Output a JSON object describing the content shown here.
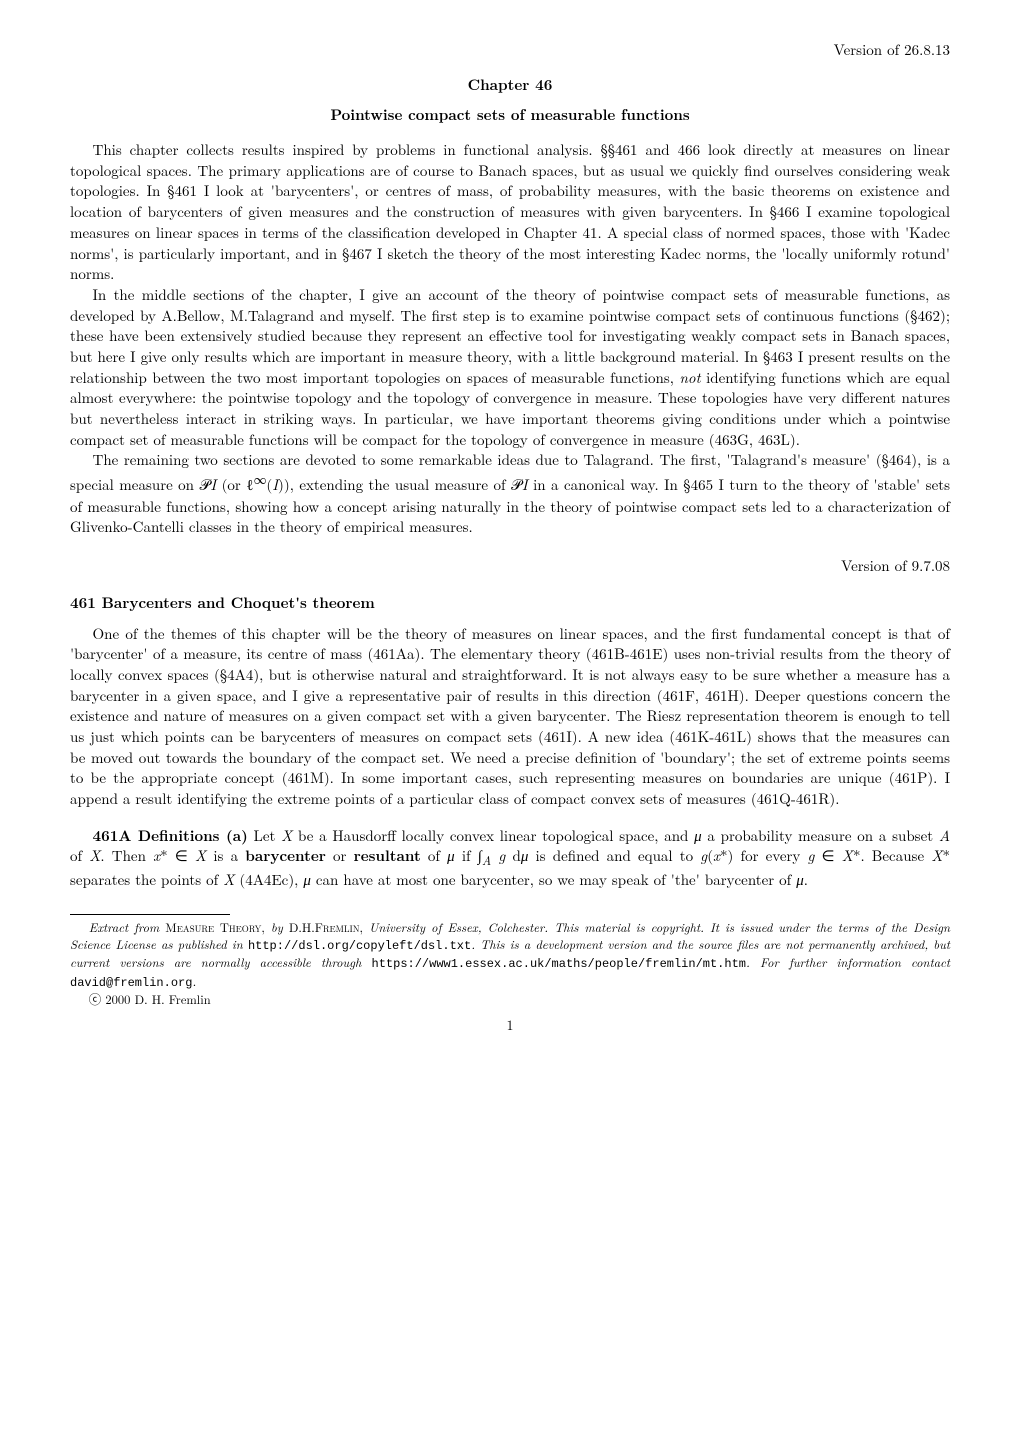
{
  "version_top": "Version of 26.8.13",
  "chapter_label": "Chapter 46",
  "chapter_title": "Pointwise compact sets of measurable functions",
  "intro_p1": "This chapter collects results inspired by problems in functional analysis. §§461 and 466 look directly at measures on linear topological spaces. The primary applications are of course to Banach spaces, but as usual we quickly find ourselves considering weak topologies. In §461 I look at 'barycenters', or centres of mass, of probability measures, with the basic theorems on existence and location of barycenters of given measures and the construction of measures with given barycenters. In §466 I examine topological measures on linear spaces in terms of the classification developed in Chapter 41. A special class of normed spaces, those with 'Kadec norms', is particularly important, and in §467 I sketch the theory of the most interesting Kadec norms, the 'locally uniformly rotund' norms.",
  "intro_p2": "In the middle sections of the chapter, I give an account of the theory of pointwise compact sets of measurable functions, as developed by A.Bellow, M.Talagrand and myself. The first step is to examine pointwise compact sets of continuous functions (§462); these have been extensively studied because they represent an effective tool for investigating weakly compact sets in Banach spaces, but here I give only results which are important in measure theory, with a little background material. In §463 I present results on the relationship between the two most important topologies on spaces of measurable functions, not identifying functions which are equal almost everywhere: the pointwise topology and the topology of convergence in measure. These topologies have very different natures but nevertheless interact in striking ways. In particular, we have important theorems giving conditions under which a pointwise compact set of measurable functions will be compact for the topology of convergence in measure (463G, 463L).",
  "intro_p3": "The remaining two sections are devoted to some remarkable ideas due to Talagrand. The first, 'Talagrand's measure' (§464), is a special measure on 𝒫I (or ℓ∞(I)), extending the usual measure of 𝒫I in a canonical way. In §465 I turn to the theory of 'stable' sets of measurable functions, showing how a concept arising naturally in the theory of pointwise compact sets led to a characterization of Glivenko-Cantelli classes in the theory of empirical measures.",
  "version_mid": "Version of 9.7.08",
  "section_heading": "461 Barycenters and Choquet's theorem",
  "section_p1": "One of the themes of this chapter will be the theory of measures on linear spaces, and the first fundamental concept is that of 'barycenter' of a measure, its centre of mass (461Aa). The elementary theory (461B-461E) uses non-trivial results from the theory of locally convex spaces (§4A4), but is otherwise natural and straightforward. It is not always easy to be sure whether a measure has a barycenter in a given space, and I give a representative pair of results in this direction (461F, 461H). Deeper questions concern the existence and nature of measures on a given compact set with a given barycenter. The Riesz representation theorem is enough to tell us just which points can be barycenters of measures on compact sets (461I). A new idea (461K-461L) shows that the measures can be moved out towards the boundary of the compact set. We need a precise definition of 'boundary'; the set of extreme points seems to be the appropriate concept (461M). In some important cases, such representing measures on boundaries are unique (461P). I append a result identifying the extreme points of a particular class of compact convex sets of measures (461Q-461R).",
  "def_p": "461A Definitions (a) Let X be a Hausdorff locally convex linear topological space, and μ a probability measure on a subset A of X. Then x* ∈ X is a barycenter or resultant of μ if ∫A g dμ is defined and equal to g(x*) for every g ∈ X*. Because X* separates the points of X (4A4Ec), μ can have at most one barycenter, so we may speak of 'the' barycenter of μ.",
  "footnote1_pre": "Extract from ",
  "footnote1_sc1": "Measure Theory,",
  "footnote1_by": " by ",
  "footnote1_sc2": "D.H.Fremlin,",
  "footnote1_mid": " University of Essex, Colchester. This material is copyright. It is issued under the terms of the Design Science License as published in ",
  "footnote1_url1": "http://dsl.org/copyleft/dsl.txt",
  "footnote1_mid2": ". This is a development version and the source files are not permanently archived, but current versions are normally accessible through ",
  "footnote1_url2": "https://www1.essex.ac.uk/maths/people/fremlin/mt.htm",
  "footnote1_mid3": ". For further information contact ",
  "footnote1_url3": "david@fremlin.org",
  "footnote1_end": ".",
  "footnote2_c": "ⓒ",
  "footnote2_text": " 2000 D. H. Fremlin",
  "pagenum": "1",
  "not_word": "not",
  "barycenter_word": "barycenter",
  "resultant_word": "resultant",
  "def_label": "461A Definitions (a)"
}
